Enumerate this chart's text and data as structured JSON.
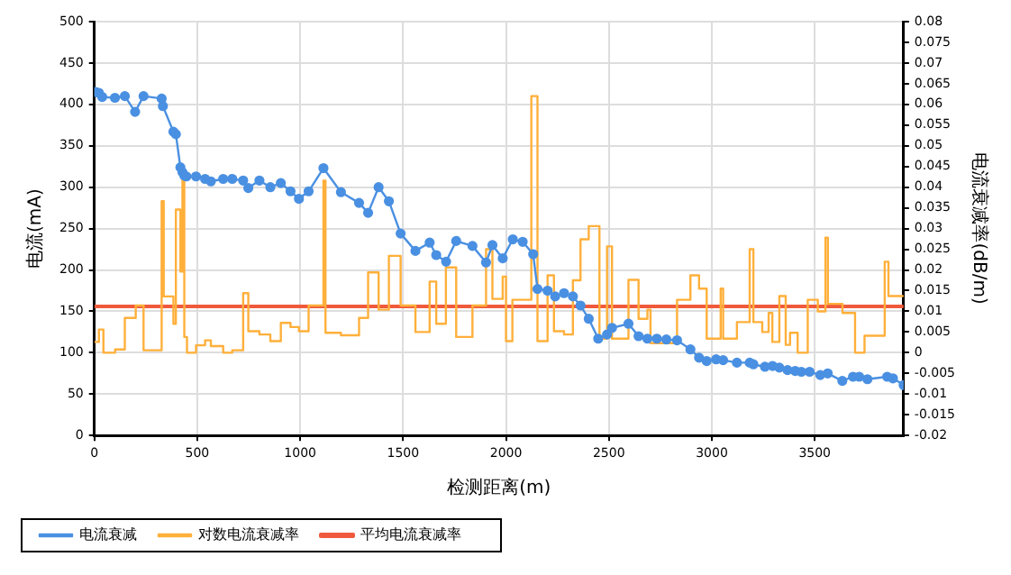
{
  "chart_data": {
    "type": "line",
    "xlabel": "检测距离(m)",
    "ylabel": "电流(mA)",
    "y2label": "电流衰减率(dB/m)",
    "xlim": [
      0,
      3932
    ],
    "xticks": [
      0,
      500,
      1000,
      1500,
      2000,
      2500,
      3000,
      3500
    ],
    "ylim": [
      0,
      500
    ],
    "yticks": [
      0,
      50,
      100,
      150,
      200,
      250,
      300,
      350,
      400,
      450,
      500
    ],
    "y2lim": [
      -0.02,
      0.08
    ],
    "y2ticks": [
      -0.02,
      -0.015,
      -0.01,
      -0.005,
      0,
      0.005,
      0.01,
      0.015,
      0.02,
      0.025,
      0.03,
      0.035,
      0.04,
      0.045,
      0.05,
      0.055,
      0.06,
      0.065,
      0.07,
      0.075,
      0.08
    ],
    "grid": true,
    "legend": "bottom left",
    "series": [
      {
        "name": "电流衰减",
        "color": "#4a90e2",
        "marker": "circle",
        "x": [
          6,
          22,
          38,
          100,
          148,
          198,
          239,
          327,
          333,
          384,
          396,
          418,
          428,
          437,
          447,
          494,
          538,
          566,
          626,
          670,
          723,
          748,
          802,
          855,
          906,
          953,
          994,
          1041,
          1113,
          1198,
          1286,
          1330,
          1381,
          1431,
          1488,
          1560,
          1629,
          1661,
          1709,
          1758,
          1837,
          1903,
          1934,
          1984,
          2033,
          2081,
          2132,
          2153,
          2202,
          2239,
          2282,
          2325,
          2362,
          2402,
          2448,
          2491,
          2515,
          2595,
          2644,
          2687,
          2733,
          2779,
          2831,
          2896,
          2938,
          2975,
          3021,
          3055,
          3122,
          3184,
          3202,
          3258,
          3295,
          3328,
          3368,
          3405,
          3435,
          3475,
          3527,
          3563,
          3634,
          3686,
          3716,
          3756,
          3852,
          3880,
          3932
        ],
        "values": [
          415,
          414,
          409,
          408,
          410,
          391,
          410,
          407,
          398,
          367,
          364,
          324,
          318,
          314,
          313,
          313,
          310,
          307,
          310,
          310,
          308,
          299,
          308,
          300,
          305,
          295,
          286,
          295,
          323,
          294,
          281,
          269,
          300,
          283,
          244,
          223,
          233,
          218,
          210,
          235,
          229,
          209,
          230,
          214,
          237,
          234,
          219,
          177,
          175,
          168,
          172,
          168,
          157,
          141,
          117,
          122,
          130,
          135,
          120,
          117,
          117,
          116,
          115,
          104,
          94,
          90,
          92,
          91,
          88,
          88,
          86,
          83,
          84,
          82,
          79,
          78,
          77,
          77,
          73,
          75,
          66,
          71,
          71,
          68,
          71,
          69,
          61
        ]
      },
      {
        "name": "对数电流衰减率",
        "type": "step",
        "axis": "y2",
        "color": "#ffb03b",
        "marker": "none",
        "x": [
          0,
          22,
          44,
          101,
          148,
          201,
          239,
          327,
          337,
          384,
          396,
          418,
          428,
          437,
          450,
          494,
          538,
          566,
          626,
          670,
          723,
          748,
          802,
          855,
          906,
          953,
          994,
          1041,
          1113,
          1123,
          1198,
          1286,
          1330,
          1381,
          1431,
          1488,
          1560,
          1629,
          1661,
          1708,
          1758,
          1837,
          1903,
          1934,
          1984,
          2000,
          2031,
          2123,
          2153,
          2202,
          2233,
          2282,
          2325,
          2362,
          2402,
          2454,
          2491,
          2515,
          2595,
          2644,
          2687,
          2702,
          2831,
          2896,
          2938,
          2975,
          3043,
          3055,
          3122,
          3184,
          3202,
          3245,
          3276,
          3294,
          3328,
          3359,
          3380,
          3417,
          3466,
          3515,
          3552,
          3564,
          3635,
          3696,
          3742,
          3840,
          3858,
          3932
        ],
        "values": [
          0.0026,
          0.0056,
          0,
          0.0008,
          0.0084,
          0.0114,
          0.0006,
          0.0366,
          0.0136,
          0.007,
          0.0346,
          0.0196,
          0.0424,
          0.0038,
          0,
          0.0018,
          0.003,
          0.0016,
          0,
          0.0006,
          0.0144,
          0.0052,
          0.0044,
          0.0028,
          0.0072,
          0.0062,
          0.0052,
          0.0114,
          0.0416,
          0.0048,
          0.0042,
          0.0084,
          0.0194,
          0.0104,
          0.0234,
          0.0114,
          0.005,
          0.0172,
          0.007,
          0.0206,
          0.0038,
          0.0114,
          0.025,
          0.013,
          0.0184,
          0.0028,
          0.0128,
          0.062,
          0.0028,
          0.0187,
          0.0052,
          0.0044,
          0.0175,
          0.0274,
          0.0306,
          0.0034,
          0.0257,
          0.0034,
          0.0176,
          0.0082,
          0.0104,
          0.0023,
          0.0128,
          0.0187,
          0.0155,
          0.0034,
          0.0155,
          0.0034,
          0.0074,
          0.025,
          0.0074,
          0.005,
          0.0096,
          0.0026,
          0.0137,
          0.0019,
          0.0048,
          0,
          0.0128,
          0.01,
          0.0278,
          0.0118,
          0.0096,
          0,
          0.0041,
          0.022,
          0.0137,
          0.0137
        ]
      },
      {
        "name": "平均电流衰减率",
        "type": "line",
        "axis": "y2",
        "color": "#f05a3c",
        "marker": "none",
        "x": [
          0,
          3932
        ],
        "values": [
          0.0112,
          0.0112
        ]
      }
    ]
  }
}
